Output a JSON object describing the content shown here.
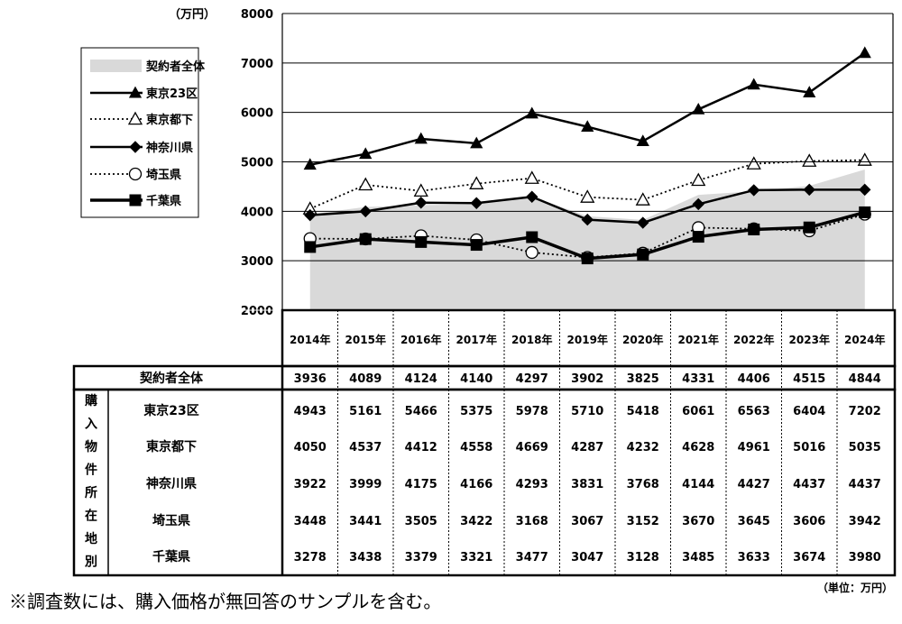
{
  "chart_data": {
    "type": "line",
    "unit_label": "（万円）",
    "table_unit_label": "（単位：万円）",
    "y_ticks": [
      "8000",
      "7000",
      "6000",
      "5000",
      "4000",
      "3000",
      "2000"
    ],
    "ylim": [
      2000,
      8000
    ],
    "categories": [
      "2014年",
      "2015年",
      "2016年",
      "2017年",
      "2018年",
      "2019年",
      "2020年",
      "2021年",
      "2022年",
      "2023年",
      "2024年"
    ],
    "grid": "horizontal",
    "legend_position": "top-left",
    "series": [
      {
        "name": "契約者全体",
        "style": "area",
        "color": "#d9d9d9",
        "values": [
          3936,
          4089,
          4124,
          4140,
          4297,
          3902,
          3825,
          4331,
          4406,
          4515,
          4844
        ],
        "labels": [
          "3936",
          "4089",
          "4124",
          "4140",
          "4297",
          "3902",
          "3825",
          "4331",
          "4406",
          "4515",
          "4844"
        ]
      },
      {
        "name": "東京23区",
        "style": "line-triangle-filled",
        "color": "#000000",
        "values": [
          4943,
          5161,
          5466,
          5375,
          5978,
          5710,
          5418,
          6061,
          6563,
          6404,
          7202
        ],
        "labels": [
          "4943",
          "5161",
          "5466",
          "5375",
          "5978",
          "5710",
          "5418",
          "6061",
          "6563",
          "6404",
          "7202"
        ]
      },
      {
        "name": "東京都下",
        "style": "dotted-triangle-open",
        "color": "#000000",
        "values": [
          4050,
          4537,
          4412,
          4558,
          4669,
          4287,
          4232,
          4628,
          4961,
          5016,
          5035
        ],
        "labels": [
          "4050",
          "4537",
          "4412",
          "4558",
          "4669",
          "4287",
          "4232",
          "4628",
          "4961",
          "5016",
          "5035"
        ]
      },
      {
        "name": "神奈川県",
        "style": "line-diamond-filled",
        "color": "#000000",
        "values": [
          3922,
          3999,
          4175,
          4166,
          4293,
          3831,
          3768,
          4144,
          4427,
          4437,
          4437
        ],
        "labels": [
          "3922",
          "3999",
          "4175",
          "4166",
          "4293",
          "3831",
          "3768",
          "4144",
          "4427",
          "4437",
          "4437"
        ]
      },
      {
        "name": "埼玉県",
        "style": "dotted-circle-open",
        "color": "#000000",
        "values": [
          3448,
          3441,
          3505,
          3422,
          3168,
          3067,
          3152,
          3670,
          3645,
          3606,
          3942
        ],
        "labels": [
          "3448",
          "3441",
          "3505",
          "3422",
          "3168",
          "3067",
          "3152",
          "3670",
          "3645",
          "3606",
          "3942"
        ]
      },
      {
        "name": "千葉県",
        "style": "thick-line-square",
        "color": "#000000",
        "values": [
          3278,
          3438,
          3379,
          3321,
          3477,
          3047,
          3128,
          3485,
          3633,
          3674,
          3980
        ],
        "labels": [
          "3278",
          "3438",
          "3379",
          "3321",
          "3477",
          "3047",
          "3128",
          "3485",
          "3633",
          "3674",
          "3980"
        ]
      }
    ],
    "table_vertical_label": [
      "購",
      "入",
      "物",
      "件",
      "所",
      "在",
      "地",
      "別"
    ]
  },
  "footnote": "※調査数には、購入価格が無回答のサンプルを含む。"
}
